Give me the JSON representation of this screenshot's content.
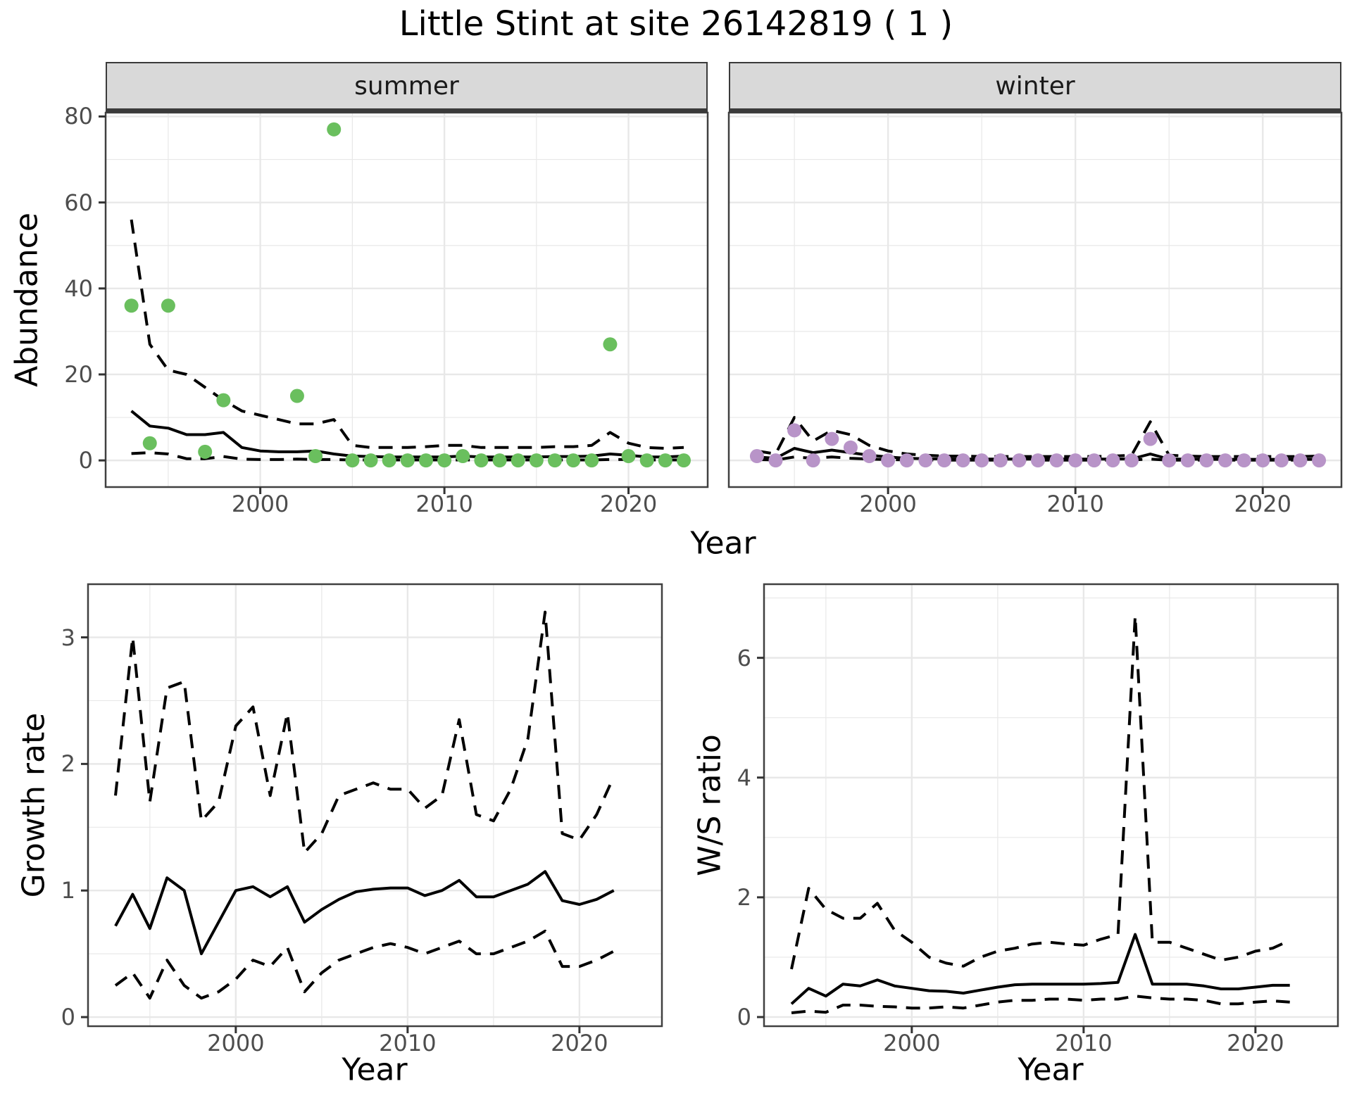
{
  "title": "Little Stint at site 26142819 ( 1 )",
  "top_row": {
    "ylabel": "Abundance",
    "xlabel": "Year",
    "facets": [
      {
        "label": "summer"
      },
      {
        "label": "winter"
      }
    ]
  },
  "bottom_left": {
    "ylabel": "Growth rate",
    "xlabel": "Year"
  },
  "bottom_right": {
    "ylabel": "W/S ratio",
    "xlabel": "Year"
  },
  "colors": {
    "summer_point": "#6abf5e",
    "winter_point": "#b894c8",
    "line": "#000000",
    "strip_bg": "#d9d9d9",
    "grid": "#e8e8e8",
    "panel_border": "#404040",
    "tick_text": "#4d4d4d"
  },
  "chart_data": [
    {
      "type": "scatter",
      "name": "abundance-summer",
      "facet": "summer",
      "ylabel": "Abundance",
      "xlabel": "Year",
      "xticks": [
        2000,
        2010,
        2020
      ],
      "yticks": [
        0,
        20,
        40,
        60,
        80
      ],
      "xlim": [
        1991.6,
        2024.3
      ],
      "ylim": [
        -6.2,
        80.9
      ],
      "grid": true,
      "point_color": "#6abf5e",
      "series": [
        {
          "name": "observed-counts",
          "style": "points",
          "x": [
            1993,
            1994,
            1995,
            1997,
            1998,
            2002,
            2003,
            2004,
            2005,
            2006,
            2007,
            2008,
            2009,
            2010,
            2011,
            2012,
            2013,
            2014,
            2015,
            2016,
            2017,
            2018,
            2019,
            2020,
            2021,
            2022,
            2023
          ],
          "y": [
            36,
            4,
            36,
            2,
            14,
            15,
            1,
            77,
            0,
            0,
            0,
            0,
            0,
            0,
            1,
            0,
            0,
            0,
            0,
            0,
            0,
            0,
            27,
            1,
            0,
            0,
            0
          ]
        },
        {
          "name": "model-median",
          "style": "solid",
          "x": [
            1993,
            1994,
            1995,
            1996,
            1997,
            1998,
            1999,
            2000,
            2001,
            2002,
            2003,
            2004,
            2005,
            2006,
            2007,
            2008,
            2009,
            2010,
            2011,
            2012,
            2013,
            2014,
            2015,
            2016,
            2017,
            2018,
            2019,
            2020,
            2021,
            2022,
            2023
          ],
          "y": [
            11.5,
            8,
            7.5,
            6,
            6,
            6.5,
            3,
            2.2,
            2,
            2,
            2.2,
            1.5,
            1,
            0.9,
            0.8,
            0.8,
            0.8,
            0.8,
            1,
            0.8,
            0.8,
            0.8,
            0.8,
            0.9,
            0.9,
            1,
            1.5,
            1.2,
            0.8,
            0.8,
            1
          ]
        },
        {
          "name": "upper-ci",
          "style": "dashed",
          "x": [
            1993,
            1994,
            1995,
            1996,
            1997,
            1998,
            1999,
            2000,
            2001,
            2002,
            2003,
            2004,
            2005,
            2006,
            2007,
            2008,
            2009,
            2010,
            2011,
            2012,
            2013,
            2014,
            2015,
            2016,
            2017,
            2018,
            2019,
            2020,
            2021,
            2022,
            2023
          ],
          "y": [
            56,
            27,
            21,
            20,
            17,
            14,
            11.5,
            10.5,
            9.5,
            8.5,
            8.5,
            9.5,
            3.5,
            3,
            3,
            3,
            3.2,
            3.5,
            3.5,
            3,
            3,
            3,
            3,
            3.2,
            3.2,
            3.5,
            6.5,
            4,
            3,
            2.8,
            3
          ]
        },
        {
          "name": "lower-ci",
          "style": "dashed",
          "x": [
            1993,
            1994,
            1995,
            1996,
            1997,
            1998,
            1999,
            2000,
            2001,
            2002,
            2003,
            2004,
            2005,
            2006,
            2007,
            2008,
            2009,
            2010,
            2011,
            2012,
            2013,
            2014,
            2015,
            2016,
            2017,
            2018,
            2019,
            2020,
            2021,
            2022,
            2023
          ],
          "y": [
            1.6,
            1.8,
            1.5,
            0.4,
            0.4,
            0.9,
            0.3,
            0.2,
            0.2,
            0.3,
            0.2,
            0.2,
            0.1,
            0.1,
            0.1,
            0.1,
            0.1,
            0.1,
            0.1,
            0.1,
            0.1,
            0.1,
            0.1,
            0.1,
            0.1,
            0.1,
            0.2,
            0.2,
            0.1,
            0.1,
            0.1
          ]
        }
      ]
    },
    {
      "type": "scatter",
      "name": "abundance-winter",
      "facet": "winter",
      "ylabel": "Abundance",
      "xlabel": "Year",
      "xticks": [
        2000,
        2010,
        2020
      ],
      "yticks": [
        0,
        20,
        40,
        60,
        80
      ],
      "xlim": [
        1991.5,
        2024.2
      ],
      "ylim": [
        -6.2,
        80.9
      ],
      "grid": true,
      "point_color": "#b894c8",
      "series": [
        {
          "name": "observed-counts",
          "style": "points",
          "x": [
            1993,
            1994,
            1995,
            1996,
            1997,
            1998,
            1999,
            2000,
            2001,
            2002,
            2003,
            2004,
            2005,
            2006,
            2007,
            2008,
            2009,
            2010,
            2011,
            2012,
            2013,
            2014,
            2015,
            2016,
            2017,
            2018,
            2019,
            2020,
            2021,
            2022,
            2023
          ],
          "y": [
            1,
            0,
            7,
            0,
            5,
            3,
            1,
            0,
            0,
            0,
            0,
            0,
            0,
            0,
            0,
            0,
            0,
            0,
            0,
            0,
            0,
            5,
            0,
            0,
            0,
            0,
            0,
            0,
            0,
            0,
            0
          ]
        },
        {
          "name": "model-median",
          "style": "solid",
          "x": [
            1993,
            1994,
            1995,
            1996,
            1997,
            1998,
            1999,
            2000,
            2001,
            2002,
            2003,
            2004,
            2005,
            2006,
            2007,
            2008,
            2009,
            2010,
            2011,
            2012,
            2013,
            2014,
            2015,
            2016,
            2017,
            2018,
            2019,
            2020,
            2021,
            2022,
            2023
          ],
          "y": [
            0.8,
            0.5,
            2.8,
            1.8,
            2.4,
            1.8,
            1.2,
            0.8,
            0.5,
            0.4,
            0.35,
            0.3,
            0.3,
            0.3,
            0.3,
            0.3,
            0.3,
            0.3,
            0.3,
            0.3,
            0.35,
            1.5,
            0.3,
            0.3,
            0.25,
            0.25,
            0.25,
            0.25,
            0.25,
            0.25,
            0.25
          ]
        },
        {
          "name": "upper-ci",
          "style": "dashed",
          "x": [
            1993,
            1994,
            1995,
            1996,
            1997,
            1998,
            1999,
            2000,
            2001,
            2002,
            2003,
            2004,
            2005,
            2006,
            2007,
            2008,
            2009,
            2010,
            2011,
            2012,
            2013,
            2014,
            2015,
            2016,
            2017,
            2018,
            2019,
            2020,
            2021,
            2022,
            2023
          ],
          "y": [
            2.2,
            1.5,
            10,
            4.5,
            7,
            6,
            3.5,
            2.2,
            1.5,
            1.2,
            1,
            1,
            0.9,
            0.9,
            0.9,
            0.9,
            0.9,
            0.9,
            0.9,
            1,
            1.2,
            9,
            1.2,
            1,
            0.9,
            0.9,
            0.9,
            0.9,
            0.9,
            0.9,
            1
          ]
        },
        {
          "name": "lower-ci",
          "style": "dashed",
          "x": [
            1993,
            1994,
            1995,
            1996,
            1997,
            1998,
            1999,
            2000,
            2001,
            2002,
            2003,
            2004,
            2005,
            2006,
            2007,
            2008,
            2009,
            2010,
            2011,
            2012,
            2013,
            2014,
            2015,
            2016,
            2017,
            2018,
            2019,
            2020,
            2021,
            2022,
            2023
          ],
          "y": [
            0.2,
            0.1,
            0.8,
            0.5,
            0.8,
            0.5,
            0.3,
            0.2,
            0.1,
            0.1,
            0.05,
            0.05,
            0.05,
            0.05,
            0.05,
            0.05,
            0.05,
            0.05,
            0.05,
            0.05,
            0.1,
            0.3,
            0.05,
            0.05,
            0.05,
            0.05,
            0.05,
            0.05,
            0.05,
            0.05,
            0.05
          ]
        }
      ]
    },
    {
      "type": "line",
      "name": "growth-rate",
      "ylabel": "Growth rate",
      "xlabel": "Year",
      "xticks": [
        2000,
        2010,
        2020
      ],
      "yticks": [
        0,
        1,
        2,
        3
      ],
      "xlim": [
        1991.4,
        2024.8
      ],
      "ylim": [
        -0.072,
        3.42
      ],
      "grid": true,
      "series": [
        {
          "name": "model-median",
          "style": "solid",
          "x": [
            1993,
            1994,
            1995,
            1996,
            1997,
            1998,
            1999,
            2000,
            2001,
            2002,
            2003,
            2004,
            2005,
            2006,
            2007,
            2008,
            2009,
            2010,
            2011,
            2012,
            2013,
            2014,
            2015,
            2016,
            2017,
            2018,
            2019,
            2020,
            2021,
            2022
          ],
          "y": [
            0.72,
            0.97,
            0.7,
            1.1,
            1,
            0.5,
            0.75,
            1,
            1.03,
            0.95,
            1.03,
            0.75,
            0.85,
            0.93,
            0.99,
            1.01,
            1.02,
            1.02,
            0.96,
            1,
            1.08,
            0.95,
            0.95,
            1,
            1.05,
            1.15,
            0.92,
            0.89,
            0.93,
            1
          ]
        },
        {
          "name": "upper-ci",
          "style": "dashed",
          "x": [
            1993,
            1994,
            1995,
            1996,
            1997,
            1998,
            1999,
            2000,
            2001,
            2002,
            2003,
            2004,
            2005,
            2006,
            2007,
            2008,
            2009,
            2010,
            2011,
            2012,
            2013,
            2014,
            2015,
            2016,
            2017,
            2018,
            2019,
            2020,
            2021,
            2022
          ],
          "y": [
            1.75,
            3,
            1.7,
            2.6,
            2.65,
            1.55,
            1.7,
            2.3,
            2.45,
            1.75,
            2.4,
            1.3,
            1.45,
            1.75,
            1.8,
            1.85,
            1.8,
            1.8,
            1.65,
            1.75,
            2.35,
            1.6,
            1.55,
            1.8,
            2.2,
            3.2,
            1.45,
            1.4,
            1.6,
            1.9
          ]
        },
        {
          "name": "lower-ci",
          "style": "dashed",
          "x": [
            1993,
            1994,
            1995,
            1996,
            1997,
            1998,
            1999,
            2000,
            2001,
            2002,
            2003,
            2004,
            2005,
            2006,
            2007,
            2008,
            2009,
            2010,
            2011,
            2012,
            2013,
            2014,
            2015,
            2016,
            2017,
            2018,
            2019,
            2020,
            2021,
            2022
          ],
          "y": [
            0.25,
            0.35,
            0.15,
            0.45,
            0.25,
            0.15,
            0.2,
            0.3,
            0.45,
            0.4,
            0.55,
            0.2,
            0.35,
            0.45,
            0.5,
            0.55,
            0.58,
            0.55,
            0.5,
            0.55,
            0.6,
            0.5,
            0.5,
            0.55,
            0.6,
            0.68,
            0.4,
            0.4,
            0.45,
            0.52
          ]
        }
      ]
    },
    {
      "type": "line",
      "name": "ws-ratio",
      "ylabel": "W/S ratio",
      "xlabel": "Year",
      "xticks": [
        2000,
        2010,
        2020
      ],
      "yticks": [
        0,
        2,
        4,
        6
      ],
      "xlim": [
        1991.4,
        2024.8
      ],
      "ylim": [
        -0.153,
        7.23
      ],
      "grid": true,
      "series": [
        {
          "name": "model-median",
          "style": "solid",
          "x": [
            1993,
            1994,
            1995,
            1996,
            1997,
            1998,
            1999,
            2000,
            2001,
            2002,
            2003,
            2004,
            2005,
            2006,
            2007,
            2008,
            2009,
            2010,
            2011,
            2012,
            2013,
            2014,
            2015,
            2016,
            2017,
            2018,
            2019,
            2020,
            2021,
            2022
          ],
          "y": [
            0.22,
            0.48,
            0.35,
            0.55,
            0.52,
            0.62,
            0.52,
            0.48,
            0.44,
            0.43,
            0.4,
            0.45,
            0.5,
            0.54,
            0.55,
            0.55,
            0.55,
            0.55,
            0.56,
            0.58,
            1.38,
            0.55,
            0.55,
            0.55,
            0.52,
            0.47,
            0.47,
            0.5,
            0.53,
            0.53
          ]
        },
        {
          "name": "upper-ci",
          "style": "dashed",
          "x": [
            1993,
            1994,
            1995,
            1996,
            1997,
            1998,
            1999,
            2000,
            2001,
            2002,
            2003,
            2004,
            2005,
            2006,
            2007,
            2008,
            2009,
            2010,
            2011,
            2012,
            2013,
            2014,
            2015,
            2016,
            2017,
            2018,
            2019,
            2020,
            2021,
            2022
          ],
          "y": [
            0.8,
            2.15,
            1.8,
            1.65,
            1.65,
            1.9,
            1.45,
            1.25,
            1,
            0.9,
            0.85,
            1,
            1.1,
            1.15,
            1.22,
            1.25,
            1.22,
            1.2,
            1.3,
            1.38,
            6.7,
            1.25,
            1.25,
            1.15,
            1.05,
            0.95,
            1,
            1.1,
            1.15,
            1.28
          ]
        },
        {
          "name": "lower-ci",
          "style": "dashed",
          "x": [
            1993,
            1994,
            1995,
            1996,
            1997,
            1998,
            1999,
            2000,
            2001,
            2002,
            2003,
            2004,
            2005,
            2006,
            2007,
            2008,
            2009,
            2010,
            2011,
            2012,
            2013,
            2014,
            2015,
            2016,
            2017,
            2018,
            2019,
            2020,
            2021,
            2022
          ],
          "y": [
            0.07,
            0.1,
            0.08,
            0.2,
            0.2,
            0.18,
            0.17,
            0.15,
            0.15,
            0.17,
            0.15,
            0.2,
            0.25,
            0.28,
            0.28,
            0.3,
            0.3,
            0.28,
            0.3,
            0.3,
            0.35,
            0.32,
            0.3,
            0.3,
            0.28,
            0.22,
            0.22,
            0.25,
            0.27,
            0.25
          ]
        }
      ]
    }
  ]
}
